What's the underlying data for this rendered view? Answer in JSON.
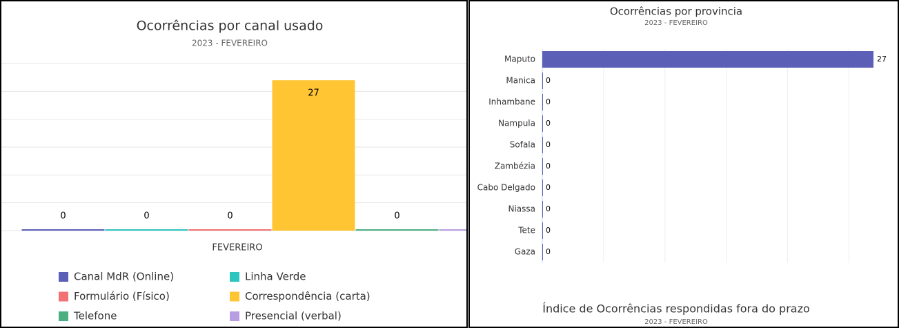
{
  "chart_data": [
    {
      "type": "bar",
      "title": "Ocorrências por canal usado",
      "subtitle": "2023 - FEVEREIRO",
      "categories": [
        "FEVEREIRO"
      ],
      "series": [
        {
          "name": "Canal MdR (Online)",
          "color": "#5b5fb5",
          "values": [
            0
          ]
        },
        {
          "name": "Linha Verde",
          "color": "#2ec4c0",
          "values": [
            0
          ]
        },
        {
          "name": "Formulário (Físico)",
          "color": "#f07272",
          "values": [
            0
          ]
        },
        {
          "name": "Correspondência (carta)",
          "color": "#ffc533",
          "values": [
            27
          ]
        },
        {
          "name": "Telefone",
          "color": "#4caf82",
          "values": [
            0
          ]
        },
        {
          "name": "Presencial (verbal)",
          "color": "#b99de2",
          "values": [
            0
          ]
        }
      ],
      "ylim": [
        0,
        30
      ],
      "yticks": [
        0,
        5,
        10,
        15,
        20,
        25,
        30
      ],
      "grid": true
    },
    {
      "type": "hbar",
      "title": "Ocorrências por provincia",
      "subtitle": "2023 - FEVEREIRO",
      "categories": [
        "Maputo",
        "Manica",
        "Inhambane",
        "Nampula",
        "Sofala",
        "Zambézia",
        "Cabo Delgado",
        "Niassa",
        "Tete",
        "Gaza"
      ],
      "values": [
        27,
        0,
        0,
        0,
        0,
        0,
        0,
        0,
        0,
        0
      ],
      "color": "#5b5fb5",
      "xlim": [
        0,
        27
      ],
      "xticks": [
        0,
        5,
        10,
        15,
        20,
        25
      ],
      "grid": true
    },
    {
      "title": "Índice de Ocorrências respondidas fora do prazo",
      "subtitle": "2023 - FEVEREIRO"
    }
  ]
}
